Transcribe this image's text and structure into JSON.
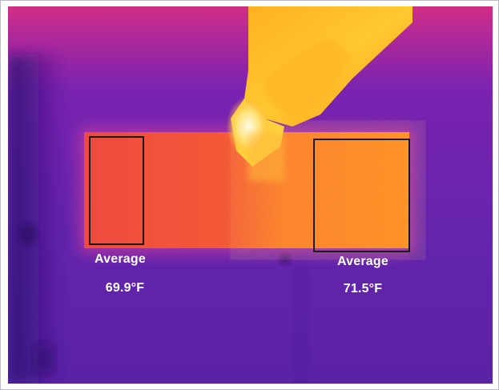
{
  "measurements": [
    {
      "title": "Average",
      "value": "69.9°F"
    },
    {
      "title": "Average",
      "value": "71.5°F"
    }
  ],
  "colors": {
    "background_cold": "#5a1ca8",
    "wall_top": "#c8308c",
    "block_warm": "#f04a3a",
    "block_hot": "#ff8c1e",
    "hand_hot": "#ffd23c",
    "box_outline": "#1a1a1a",
    "label_text": "#ffffff"
  }
}
